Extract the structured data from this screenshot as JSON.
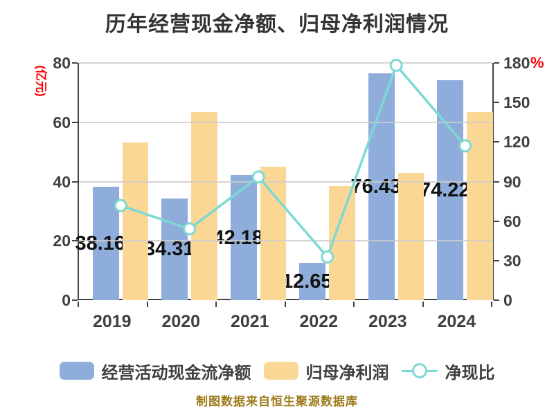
{
  "title": "历年经营现金净额、归母净利润情况",
  "footer": "制图数据来自恒生聚源数据库",
  "left_axis": {
    "unit": "(亿元)",
    "ticks": [
      0,
      20,
      40,
      60,
      80
    ],
    "max": 80
  },
  "right_axis": {
    "unit": "%",
    "ticks": [
      0,
      30,
      60,
      90,
      120,
      150,
      180
    ],
    "max": 180
  },
  "legend": [
    {
      "label": "经营活动现金流净额",
      "type": "bar",
      "color": "#8EADDA"
    },
    {
      "label": "归母净利润",
      "type": "bar",
      "color": "#FAD795"
    },
    {
      "label": "净现比",
      "type": "line",
      "color": "#7CD9D3"
    }
  ],
  "chart_data": {
    "type": "bar",
    "categories": [
      "2019",
      "2020",
      "2021",
      "2022",
      "2023",
      "2024"
    ],
    "series": [
      {
        "name": "经营活动现金流净额",
        "type": "bar",
        "axis": "left",
        "color": "#8EADDA",
        "values": [
          38.168,
          34.319,
          42.188,
          12.653,
          76.437,
          74.228
        ],
        "labels": [
          "38.168",
          "34.319",
          "42.188",
          "12.653",
          "76.437",
          "74.228"
        ]
      },
      {
        "name": "归母净利润",
        "type": "bar",
        "axis": "left",
        "color": "#FAD795",
        "values": [
          53.2,
          63.4,
          45.1,
          38.6,
          42.9,
          63.4
        ]
      },
      {
        "name": "净现比",
        "type": "line",
        "axis": "right",
        "color": "#7CD9D3",
        "values": [
          71.8,
          54.1,
          93.5,
          32.8,
          178.2,
          117.1
        ]
      }
    ],
    "left_ylim": [
      0,
      80
    ],
    "right_ylim": [
      0,
      180
    ],
    "left_unit": "亿元",
    "right_unit": "%",
    "grid": true,
    "legend_position": "bottom"
  },
  "colors": {
    "bar_cash": "#8EADDA",
    "bar_profit": "#FAD795",
    "line_ratio": "#7CD9D3",
    "marker_fill": "#FFFFFF",
    "axis_text": "#404040",
    "title_text": "#333333",
    "value_label": "#111111",
    "unit_red": "#FF0000",
    "footer_gold": "#9D7A1B",
    "gridline": "#CDCDCD",
    "axis_line": "#444444"
  }
}
